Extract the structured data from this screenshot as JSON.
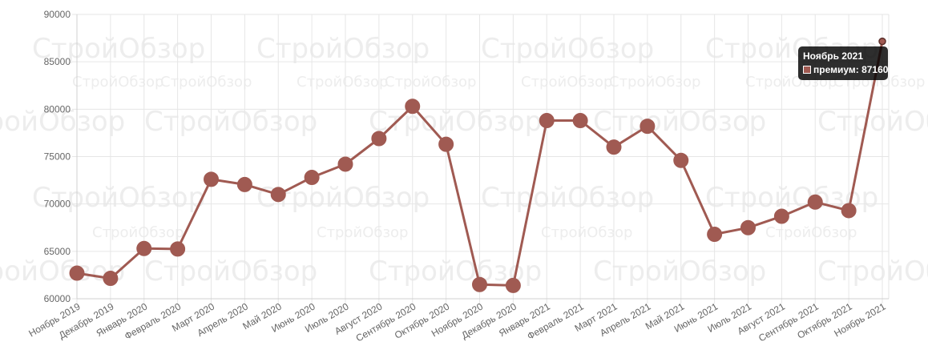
{
  "chart_data": {
    "type": "line",
    "categories": [
      "Ноябрь 2019",
      "Декабрь 2019",
      "Январь 2020",
      "Февраль 2020",
      "Март 2020",
      "Апрель 2020",
      "Май 2020",
      "Июнь 2020",
      "Июль 2020",
      "Август 2020",
      "Сентябрь 2020",
      "Октябрь 2020",
      "Ноябрь 2020",
      "Декабрь 2020",
      "Январь 2021",
      "Февраль 2021",
      "Март 2021",
      "Апрель 2021",
      "Май 2021",
      "Июнь 2021",
      "Июль 2021",
      "Август 2021",
      "Сентябрь 2021",
      "Октябрь 2021",
      "Ноябрь 2021"
    ],
    "series": [
      {
        "name": "премиум",
        "color": "#a05a52",
        "values": [
          62700,
          62150,
          65300,
          65250,
          72600,
          72050,
          71000,
          72800,
          74200,
          76900,
          80300,
          76300,
          61500,
          61400,
          78800,
          78800,
          76000,
          78200,
          74600,
          66800,
          67500,
          68700,
          70200,
          69300,
          87160
        ]
      }
    ],
    "ylim": [
      60000,
      90000
    ],
    "yticks": [
      60000,
      65000,
      70000,
      75000,
      80000,
      85000,
      90000
    ],
    "grid": true,
    "watermark": "СтройОбзор"
  },
  "tooltip": {
    "title": "Ноябрь 2021",
    "label": "премиум: 87160",
    "swatch_color": "#a05a52"
  }
}
